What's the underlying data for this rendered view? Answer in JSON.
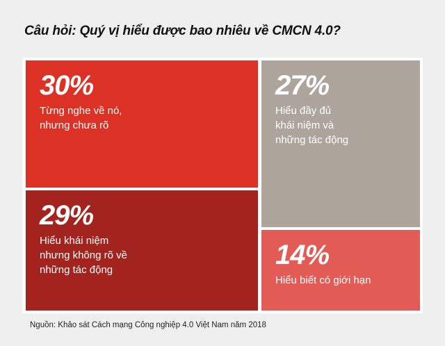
{
  "chart_data": {
    "type": "treemap",
    "title": "Câu hỏi: Quý vị hiểu được bao nhiêu về CMCN 4.0?",
    "items": [
      {
        "value_label": "30%",
        "value": 30,
        "label": "Từng nghe về nó,\nnhưng chưa rõ",
        "color": "#dc3226"
      },
      {
        "value_label": "27%",
        "value": 27,
        "label": "Hiểu đầy đủ\nkhái niệm và\nnhững tác động",
        "color": "#ada49c"
      },
      {
        "value_label": "29%",
        "value": 29,
        "label": "Hiểu khái niệm\nnhưng không rõ về\nnhững tác động",
        "color": "#a3241f"
      },
      {
        "value_label": "14%",
        "value": 14,
        "label": "Hiểu biết có giới hạn",
        "color": "#e35b55"
      }
    ],
    "source": "Nguồn: Khảo sát Cách mạng Công nghiệp 4.0 Việt Nam năm 2018"
  }
}
